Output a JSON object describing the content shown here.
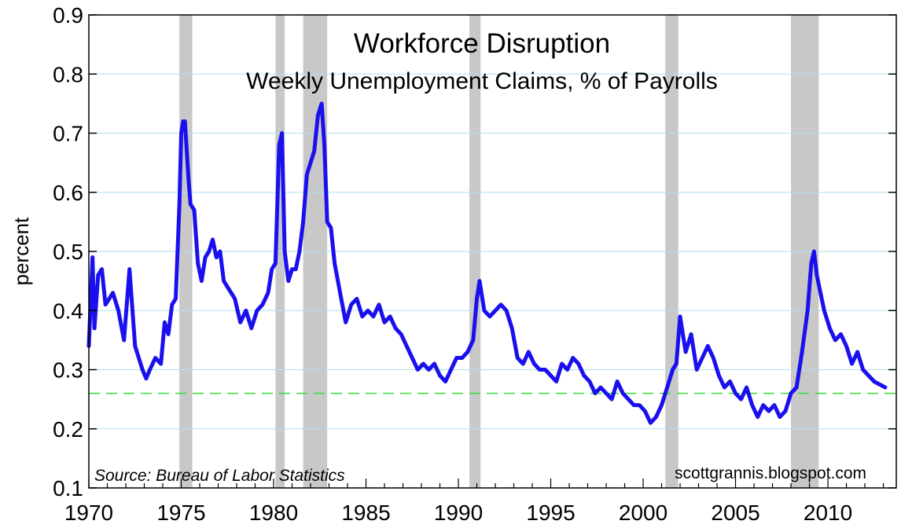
{
  "chart_data": {
    "type": "line",
    "title": "Workforce Disruption",
    "subtitle": "Weekly Unemployment Claims, % of Payrolls",
    "ylabel": "percent",
    "xlabel": "",
    "xlim": [
      1970,
      2013.7
    ],
    "ylim": [
      0.1,
      0.9
    ],
    "yticks": [
      0.1,
      0.2,
      0.3,
      0.4,
      0.5,
      0.6,
      0.7,
      0.8,
      0.9
    ],
    "ytick_labels": [
      "0.1",
      "0.2",
      "0.3",
      "0.4",
      "0.5",
      "0.6",
      "0.7",
      "0.8",
      "0.9"
    ],
    "xticks": [
      1970,
      1975,
      1980,
      1985,
      1990,
      1995,
      2000,
      2005,
      2010
    ],
    "xtick_labels": [
      "1970",
      "1975",
      "1980",
      "1985",
      "1990",
      "1995",
      "2000",
      "2005",
      "2010"
    ],
    "grid": true,
    "source": "Source: Bureau of Labor Statistics",
    "credit": "scottgrannis.blogspot.com",
    "reference_line": {
      "y": 0.26,
      "style": "dashed",
      "color": "#33dd33"
    },
    "recessions": [
      [
        1974.9,
        1975.6
      ],
      [
        1980.1,
        1980.6
      ],
      [
        1981.6,
        1982.9
      ],
      [
        1990.6,
        1991.2
      ],
      [
        2001.2,
        2001.9
      ],
      [
        2008.0,
        2009.5
      ]
    ],
    "colors": {
      "line": "#1a10ee",
      "recession": "#c8c8c8",
      "grid": "#aee0f2",
      "axis": "#000000"
    },
    "series": [
      {
        "x": [
          1970.0,
          1970.2,
          1970.3,
          1970.5,
          1970.7,
          1970.9,
          1971.1,
          1971.3,
          1971.6,
          1971.9,
          1972.2,
          1972.5,
          1972.7,
          1972.9,
          1973.1,
          1973.3,
          1973.6,
          1973.9,
          1974.1,
          1974.3,
          1974.5,
          1974.7,
          1974.9,
          1975.0,
          1975.1,
          1975.2,
          1975.4,
          1975.5,
          1975.7,
          1975.9,
          1976.1,
          1976.3,
          1976.5,
          1976.7,
          1976.9,
          1977.1,
          1977.3,
          1977.5,
          1977.7,
          1977.9,
          1978.2,
          1978.5,
          1978.8,
          1979.1,
          1979.4,
          1979.7,
          1979.9,
          1980.1,
          1980.3,
          1980.45,
          1980.6,
          1980.8,
          1981.0,
          1981.2,
          1981.4,
          1981.6,
          1981.8,
          1982.0,
          1982.2,
          1982.4,
          1982.6,
          1982.75,
          1982.9,
          1983.1,
          1983.3,
          1983.6,
          1983.9,
          1984.2,
          1984.5,
          1984.8,
          1985.1,
          1985.4,
          1985.7,
          1986.0,
          1986.3,
          1986.6,
          1986.9,
          1987.2,
          1987.5,
          1987.8,
          1988.1,
          1988.4,
          1988.7,
          1989.0,
          1989.3,
          1989.6,
          1989.9,
          1990.2,
          1990.5,
          1990.8,
          1991.0,
          1991.15,
          1991.4,
          1991.7,
          1992.0,
          1992.3,
          1992.6,
          1992.9,
          1993.2,
          1993.5,
          1993.8,
          1994.1,
          1994.4,
          1994.7,
          1995.0,
          1995.3,
          1995.6,
          1995.9,
          1996.2,
          1996.5,
          1996.8,
          1997.1,
          1997.4,
          1997.7,
          1998.0,
          1998.3,
          1998.6,
          1998.9,
          1999.2,
          1999.5,
          1999.8,
          2000.1,
          2000.4,
          2000.7,
          2001.0,
          2001.3,
          2001.6,
          2001.8,
          2002.0,
          2002.3,
          2002.6,
          2002.9,
          2003.2,
          2003.5,
          2003.8,
          2004.1,
          2004.4,
          2004.7,
          2005.0,
          2005.3,
          2005.6,
          2005.9,
          2006.2,
          2006.5,
          2006.8,
          2007.1,
          2007.4,
          2007.7,
          2008.0,
          2008.3,
          2008.6,
          2008.9,
          2009.1,
          2009.25,
          2009.4,
          2009.6,
          2009.8,
          2010.1,
          2010.4,
          2010.7,
          2011.0,
          2011.3,
          2011.6,
          2011.9,
          2012.2,
          2012.5,
          2012.8,
          2013.1
        ],
        "values": [
          0.34,
          0.49,
          0.37,
          0.46,
          0.47,
          0.41,
          0.42,
          0.43,
          0.4,
          0.35,
          0.47,
          0.34,
          0.32,
          0.3,
          0.285,
          0.3,
          0.32,
          0.31,
          0.38,
          0.36,
          0.41,
          0.42,
          0.58,
          0.7,
          0.72,
          0.72,
          0.62,
          0.58,
          0.57,
          0.48,
          0.45,
          0.49,
          0.5,
          0.52,
          0.49,
          0.5,
          0.45,
          0.44,
          0.43,
          0.42,
          0.38,
          0.4,
          0.37,
          0.4,
          0.41,
          0.43,
          0.47,
          0.48,
          0.68,
          0.7,
          0.5,
          0.45,
          0.47,
          0.47,
          0.5,
          0.55,
          0.63,
          0.65,
          0.67,
          0.73,
          0.75,
          0.68,
          0.55,
          0.54,
          0.48,
          0.43,
          0.38,
          0.41,
          0.42,
          0.39,
          0.4,
          0.39,
          0.41,
          0.38,
          0.39,
          0.37,
          0.36,
          0.34,
          0.32,
          0.3,
          0.31,
          0.3,
          0.31,
          0.29,
          0.28,
          0.3,
          0.32,
          0.32,
          0.33,
          0.35,
          0.42,
          0.45,
          0.4,
          0.39,
          0.4,
          0.41,
          0.4,
          0.37,
          0.32,
          0.31,
          0.33,
          0.31,
          0.3,
          0.3,
          0.29,
          0.28,
          0.31,
          0.3,
          0.32,
          0.31,
          0.29,
          0.28,
          0.26,
          0.27,
          0.26,
          0.25,
          0.28,
          0.26,
          0.25,
          0.24,
          0.24,
          0.23,
          0.21,
          0.22,
          0.24,
          0.27,
          0.3,
          0.31,
          0.39,
          0.33,
          0.36,
          0.3,
          0.32,
          0.34,
          0.32,
          0.29,
          0.27,
          0.28,
          0.26,
          0.25,
          0.27,
          0.24,
          0.22,
          0.24,
          0.23,
          0.24,
          0.22,
          0.23,
          0.26,
          0.27,
          0.33,
          0.4,
          0.48,
          0.5,
          0.46,
          0.43,
          0.4,
          0.37,
          0.35,
          0.36,
          0.34,
          0.31,
          0.33,
          0.3,
          0.29,
          0.28,
          0.275,
          0.27
        ]
      }
    ]
  }
}
